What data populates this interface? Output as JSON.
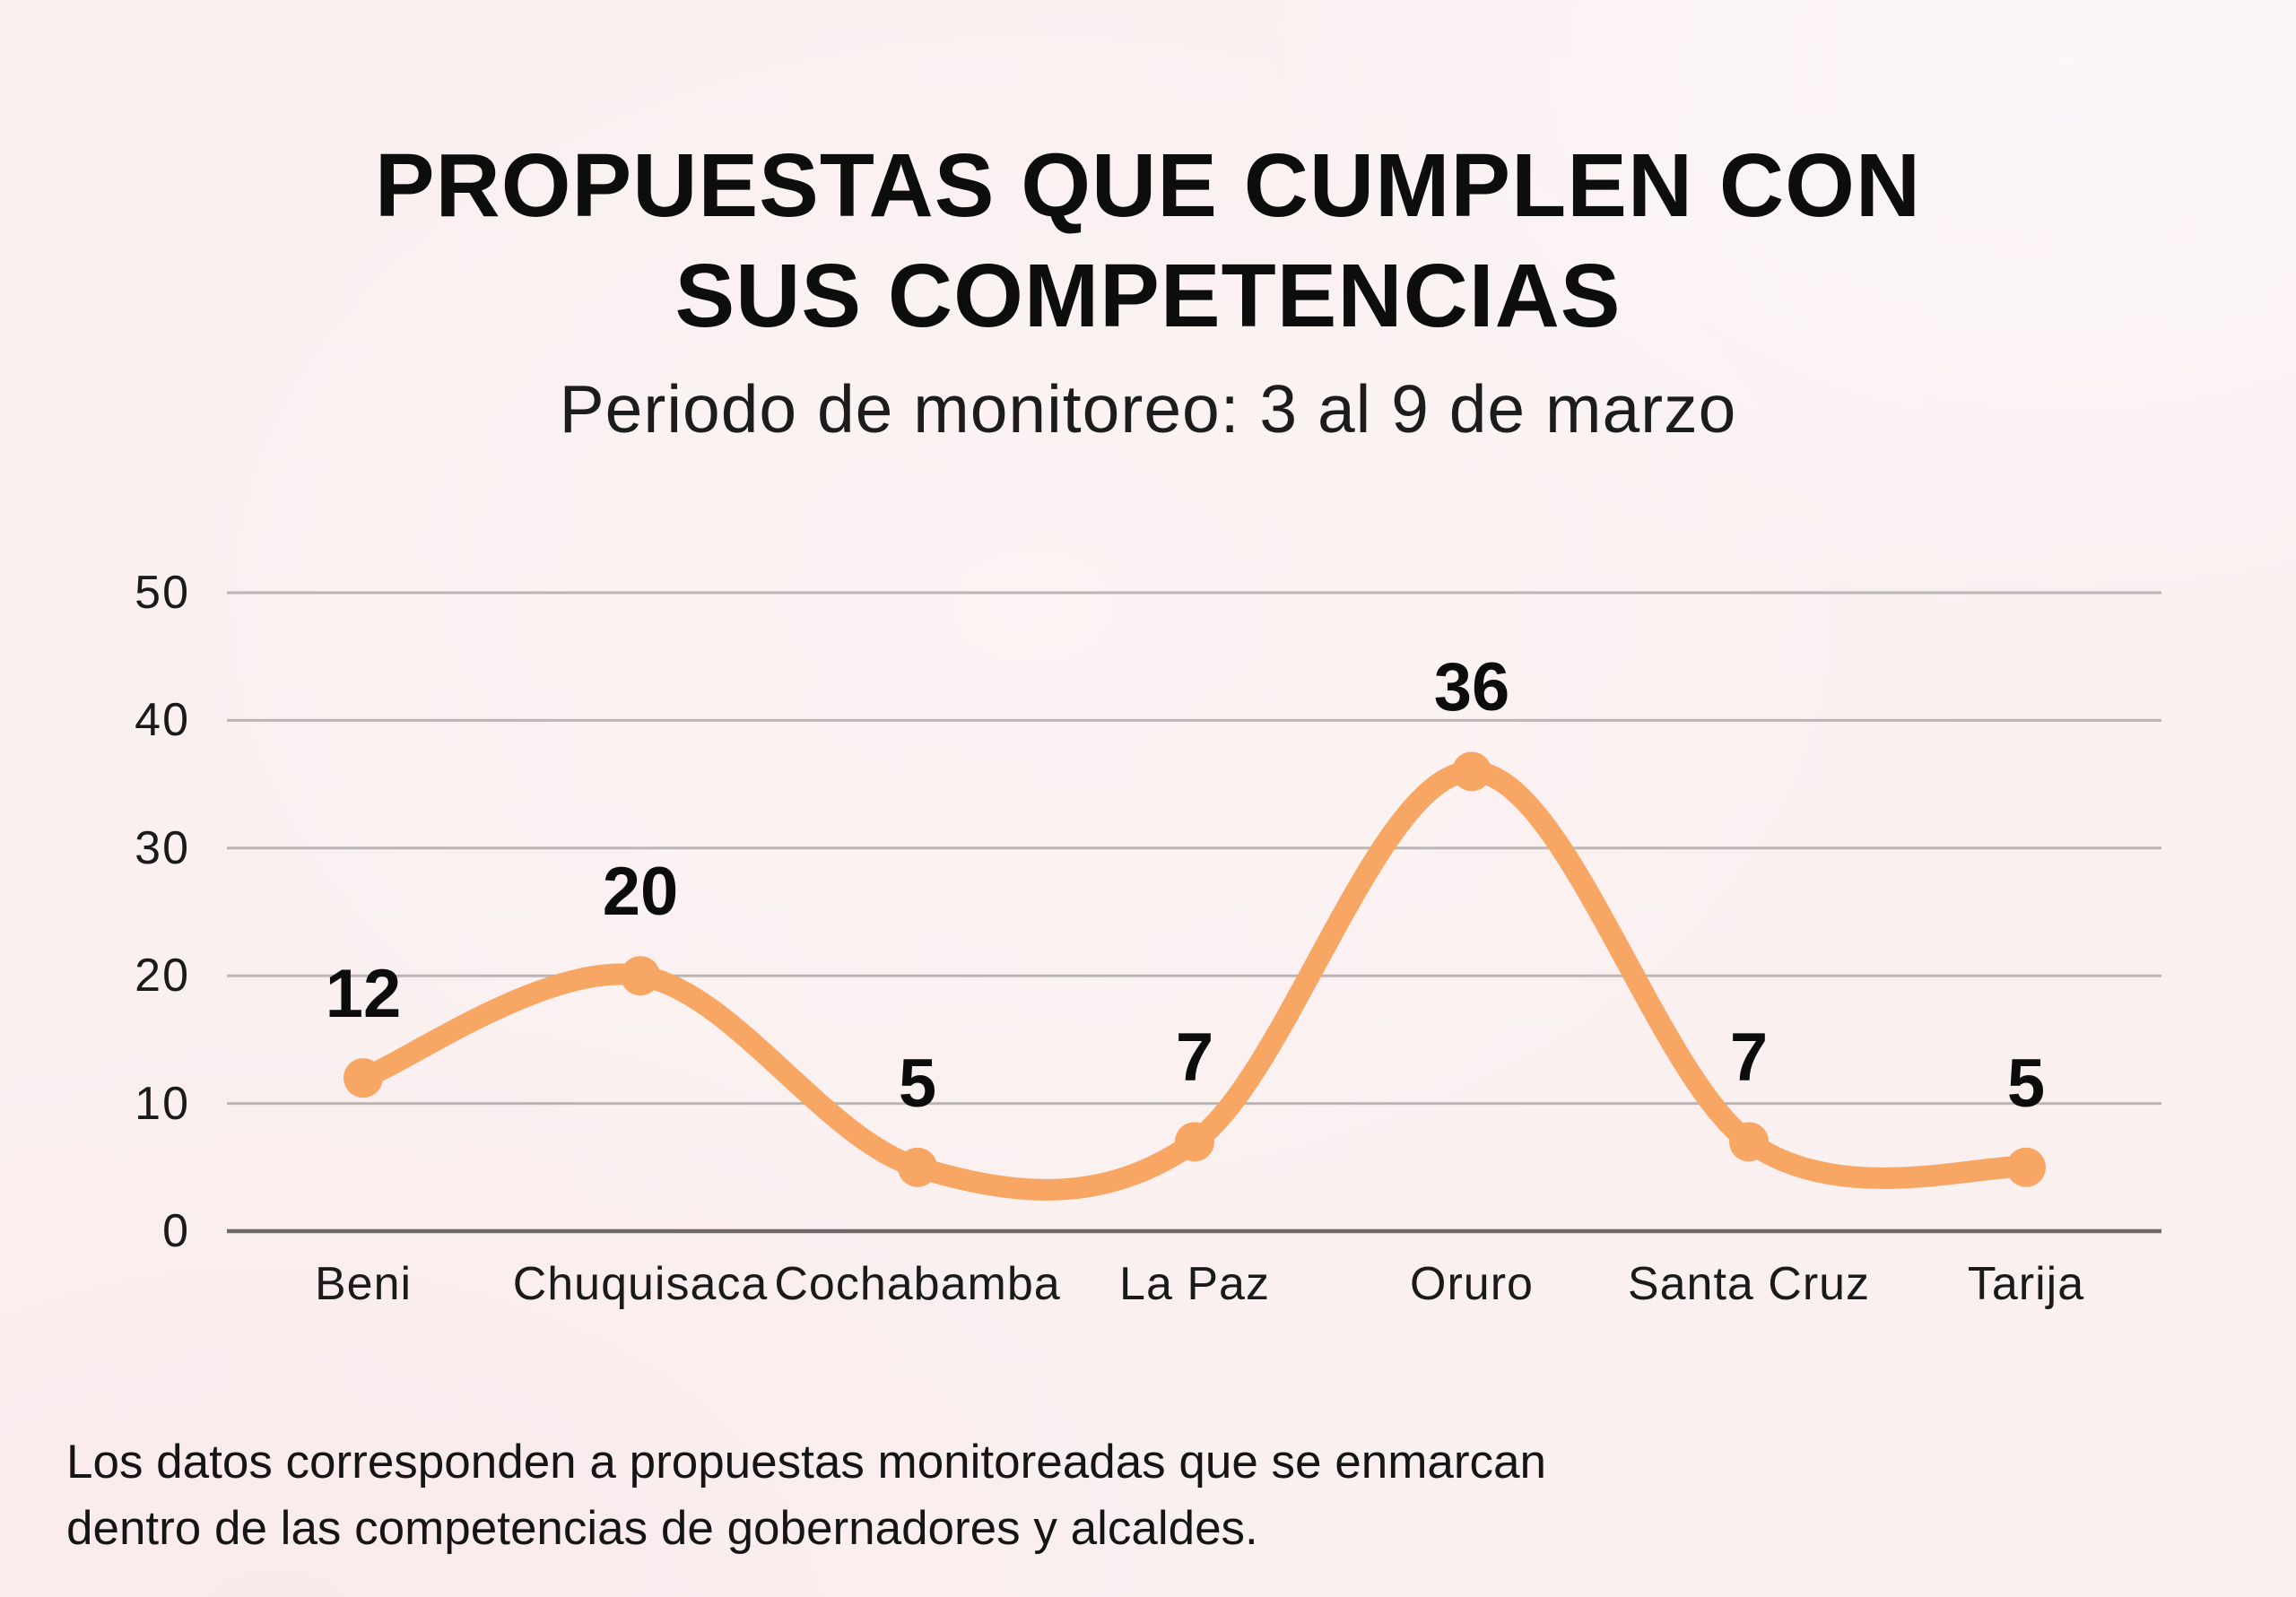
{
  "header": {
    "title_line1": "PROPUESTAS QUE CUMPLEN CON",
    "title_line2": "SUS COMPETENCIAS",
    "subtitle": "Periodo de monitoreo: 3 al 9 de marzo"
  },
  "footer": {
    "line1": "Los datos corresponden a propuestas monitoreadas que se enmarcan",
    "line2": "dentro de las competencias de gobernadores y alcaldes."
  },
  "chart_data": {
    "type": "line",
    "title": "PROPUESTAS QUE CUMPLEN CON SUS COMPETENCIAS",
    "subtitle": "Periodo de monitoreo: 3 al 9 de marzo",
    "categories": [
      "Beni",
      "Chuquisaca",
      "Cochabamba",
      "La Paz",
      "Oruro",
      "Santa Cruz",
      "Tarija"
    ],
    "values": [
      12,
      20,
      5,
      7,
      36,
      7,
      5
    ],
    "point_labels": [
      "12",
      "20",
      "5",
      "7",
      "36",
      "7",
      "5"
    ],
    "y_ticks": [
      0,
      10,
      20,
      30,
      40,
      50
    ],
    "ylim": [
      0,
      50
    ],
    "xlabel": "",
    "ylabel": "",
    "grid": "horizontal-only",
    "legend": "none",
    "smooth": true,
    "line_color": "#F8A664",
    "marker_color": "#F8A664",
    "grid_color": "#bcb5b6",
    "axis_color": "#6e6869",
    "label_color": "#0c0c0c",
    "background_color": "#faf0f0"
  }
}
